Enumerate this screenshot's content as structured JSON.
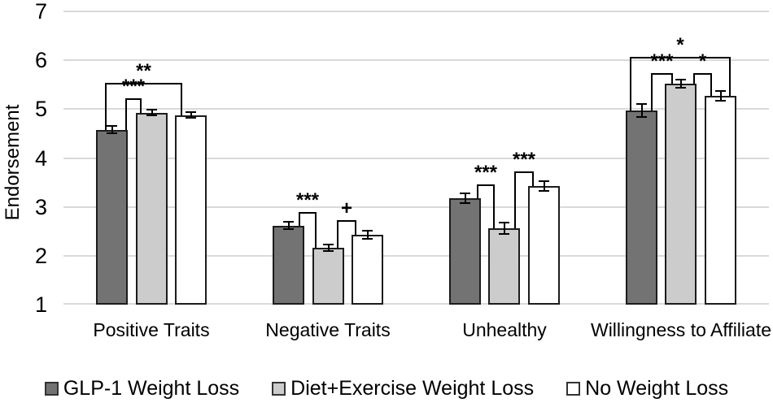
{
  "figure_title": "",
  "axes": {
    "y_label": "Endorsement",
    "y_tick_labels": [
      "1",
      "2",
      "3",
      "4",
      "5",
      "6",
      "7"
    ]
  },
  "chart_data": {
    "type": "bar",
    "title": "",
    "xlabel": "",
    "ylabel": "Endorsement",
    "ylim": [
      1,
      7
    ],
    "yticks": [
      1,
      2,
      3,
      4,
      5,
      6,
      7
    ],
    "grid": true,
    "legend_position": "bottom",
    "categories": [
      "Positive Traits",
      "Negative Traits",
      "Unhealthy",
      "Willingness to Affiliate"
    ],
    "series": [
      {
        "name": "GLP-1 Weight Loss",
        "color": "#737373",
        "values": [
          4.58,
          2.62,
          3.18,
          4.97
        ],
        "errors": [
          0.08,
          0.07,
          0.1,
          0.13
        ]
      },
      {
        "name": "Diet+Exercise Weight Loss",
        "color": "#cccccc",
        "values": [
          4.93,
          2.16,
          2.56,
          5.52
        ],
        "errors": [
          0.06,
          0.07,
          0.12,
          0.08
        ]
      },
      {
        "name": "No Weight Loss",
        "color": "#ffffff",
        "values": [
          4.88,
          2.43,
          3.43,
          5.27
        ],
        "errors": [
          0.06,
          0.08,
          0.1,
          0.1
        ]
      }
    ],
    "significance_brackets": [
      {
        "group": 0,
        "from": 0,
        "to": 1,
        "label": "***",
        "y": 5.2,
        "fx": 0.92,
        "tx": 0.13
      },
      {
        "group": 0,
        "from": 0,
        "to": 2,
        "label": "**",
        "y": 5.52,
        "fx": 0.28,
        "tx": 0.18
      },
      {
        "group": 1,
        "from": 0,
        "to": 1,
        "label": "***",
        "y": 2.88,
        "fx": 0.82,
        "tx": 0.08
      },
      {
        "group": 1,
        "from": 1,
        "to": 2,
        "label": "+",
        "y": 2.71,
        "fx": 0.79,
        "tx": 0.1
      },
      {
        "group": 2,
        "from": 0,
        "to": 1,
        "label": "***",
        "y": 3.45,
        "fx": 0.87,
        "tx": 0.15
      },
      {
        "group": 2,
        "from": 1,
        "to": 2,
        "label": "***",
        "y": 3.71,
        "fx": 0.82,
        "tx": 0.13
      },
      {
        "group": 3,
        "from": 0,
        "to": 1,
        "label": "***",
        "y": 5.72,
        "fx": 0.81,
        "tx": 0.21
      },
      {
        "group": 3,
        "from": 1,
        "to": 2,
        "label": "*",
        "y": 5.72,
        "fx": 0.9,
        "tx": 0.18
      },
      {
        "group": 3,
        "from": 0,
        "to": 2,
        "label": "*",
        "y": 6.05,
        "fx": 0.14,
        "tx": 0.79
      }
    ]
  },
  "colors": {
    "gridline": "#d9d9d9",
    "bar_border": "#1c1c1c",
    "error_bar": "#000000",
    "text": "#000000"
  }
}
